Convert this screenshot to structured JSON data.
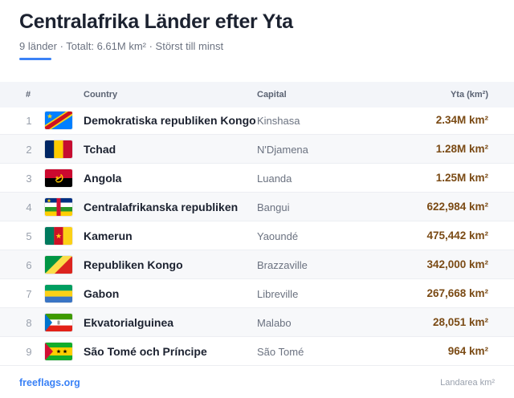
{
  "header": {
    "title": "Centralafrika Länder efter Yta",
    "subtitle": "9 länder · Totalt: 6.61M km² · Störst till minst",
    "accent_color": "#3b82f6"
  },
  "table": {
    "columns": {
      "num": "#",
      "country": "Country",
      "capital": "Capital",
      "area": "Yta (km²)"
    },
    "rows": [
      {
        "rank": "1",
        "country": "Demokratiska republiken Kongo",
        "capital": "Kinshasa",
        "area": "2.34M km²",
        "flag": "flag-cd-icon"
      },
      {
        "rank": "2",
        "country": "Tchad",
        "capital": "N'Djamena",
        "area": "1.28M km²",
        "flag": "flag-td-icon"
      },
      {
        "rank": "3",
        "country": "Angola",
        "capital": "Luanda",
        "area": "1.25M km²",
        "flag": "flag-ao-icon"
      },
      {
        "rank": "4",
        "country": "Centralafrikanska republiken",
        "capital": "Bangui",
        "area": "622,984 km²",
        "flag": "flag-cf-icon"
      },
      {
        "rank": "5",
        "country": "Kamerun",
        "capital": "Yaoundé",
        "area": "475,442 km²",
        "flag": "flag-cm-icon"
      },
      {
        "rank": "6",
        "country": "Republiken Kongo",
        "capital": "Brazzaville",
        "area": "342,000 km²",
        "flag": "flag-cg-icon"
      },
      {
        "rank": "7",
        "country": "Gabon",
        "capital": "Libreville",
        "area": "267,668 km²",
        "flag": "flag-ga-icon"
      },
      {
        "rank": "8",
        "country": "Ekvatorialguinea",
        "capital": "Malabo",
        "area": "28,051 km²",
        "flag": "flag-gq-icon"
      },
      {
        "rank": "9",
        "country": "São Tomé och Príncipe",
        "capital": "São Tomé",
        "area": "964 km²",
        "flag": "flag-st-icon"
      }
    ]
  },
  "footer": {
    "link": "freeflags.org",
    "note": "Landarea km²"
  }
}
